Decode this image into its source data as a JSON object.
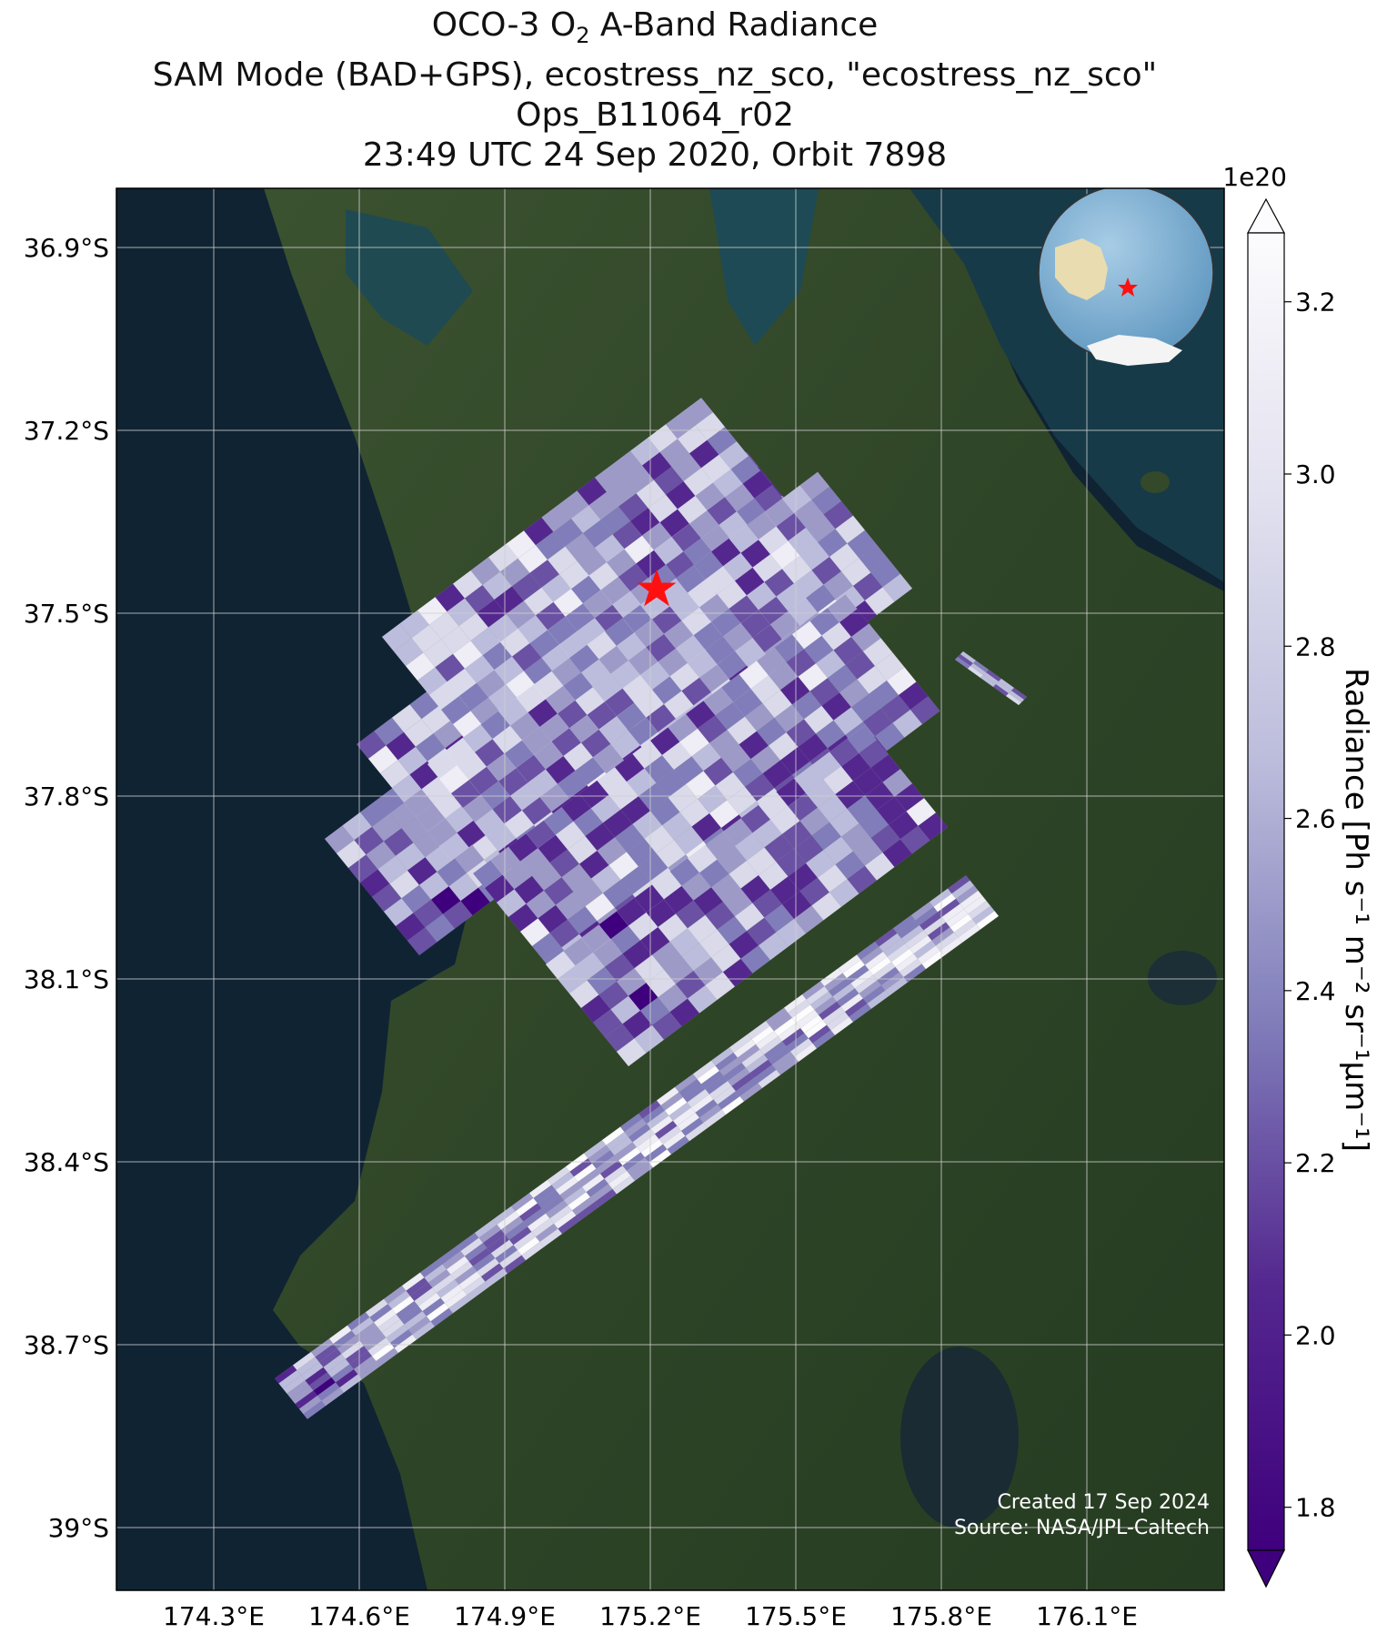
{
  "title": {
    "line1_prefix": "OCO-3 O",
    "line1_sub": "2",
    "line1_suffix": " A-Band Radiance",
    "line2": "SAM Mode (BAD+GPS), ecostress_nz_sco, \"ecostress_nz_sco\"",
    "line3": "Ops_B11064_r02",
    "line4": "23:49 UTC 24 Sep 2020, Orbit 7898"
  },
  "map": {
    "lat_ticks": [
      "36.9°S",
      "37.2°S",
      "37.5°S",
      "37.8°S",
      "38.1°S",
      "38.4°S",
      "38.7°S",
      "39°S"
    ],
    "lon_ticks": [
      "174.3°E",
      "174.6°E",
      "174.9°E",
      "175.2°E",
      "175.5°E",
      "175.8°E",
      "176.1°E"
    ],
    "target_marker": "red-star",
    "inset": "globe-locator"
  },
  "colorbar": {
    "multiplier": "1e20",
    "ticks": [
      "3.2",
      "3.0",
      "2.8",
      "2.6",
      "2.4",
      "2.2",
      "2.0",
      "1.8"
    ],
    "label": "Radiance [Ph s⁻¹ m⁻² sr⁻¹μm⁻¹]",
    "colormap": "Purples_r",
    "range": [
      1.75,
      3.28
    ]
  },
  "credit": {
    "created": "Created 17 Sep 2024",
    "source": "Source: NASA/JPL-Caltech"
  },
  "colors": {
    "ocean": "#0f2333",
    "land": "#34482a",
    "swath_dark": "#3f007d",
    "swath_light": "#fcfbfd",
    "marker": "#ff1010"
  }
}
